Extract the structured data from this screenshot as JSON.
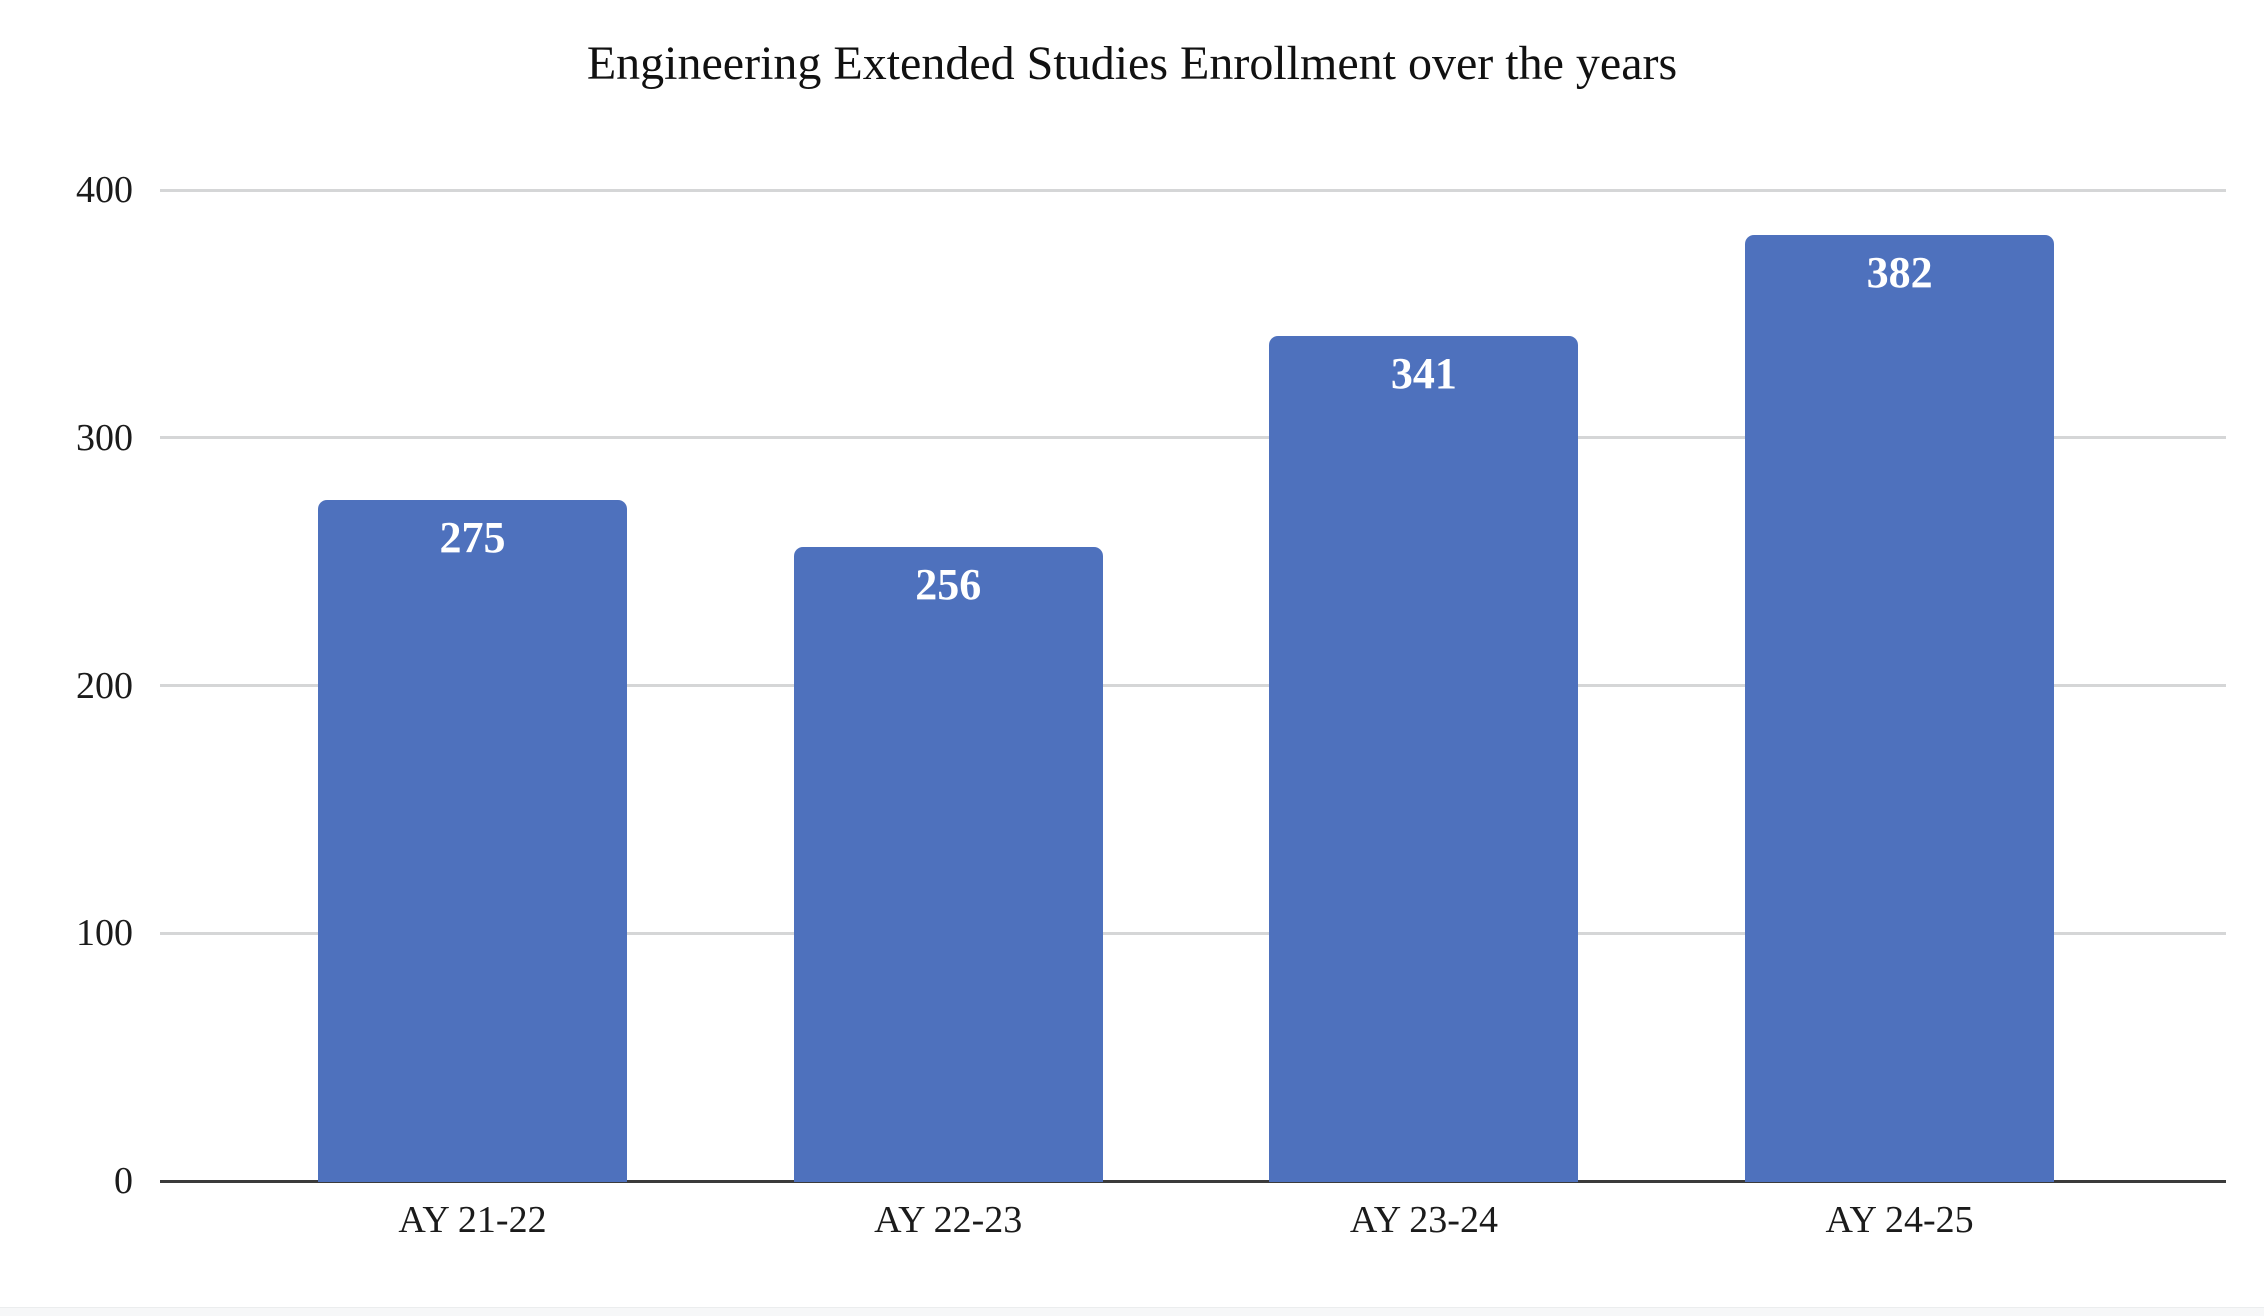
{
  "chart_data": {
    "type": "bar",
    "title": "Engineering Extended Studies Enrollment over the years",
    "categories": [
      "AY 21-22",
      "AY 22-23",
      "AY 23-24",
      "AY 24-25"
    ],
    "values": [
      275,
      256,
      341,
      382
    ],
    "value_labels": [
      "275",
      "256",
      "341",
      "382"
    ],
    "xlabel": "",
    "ylabel": "",
    "ylim": [
      0,
      400
    ],
    "yticks": [
      0,
      100,
      200,
      300,
      400
    ],
    "ytick_labels": [
      "0",
      "100",
      "200",
      "300",
      "400"
    ],
    "grid": true,
    "legend": false,
    "bar_color": "#4e71bd",
    "value_label_color": "#ffffff",
    "gridline_color": "#d5d6d7",
    "axis_line_color": "#3b3b3b",
    "tick_text_color": "#1b1b1b",
    "title_color": "#111111",
    "background_color": "#ffffff"
  }
}
